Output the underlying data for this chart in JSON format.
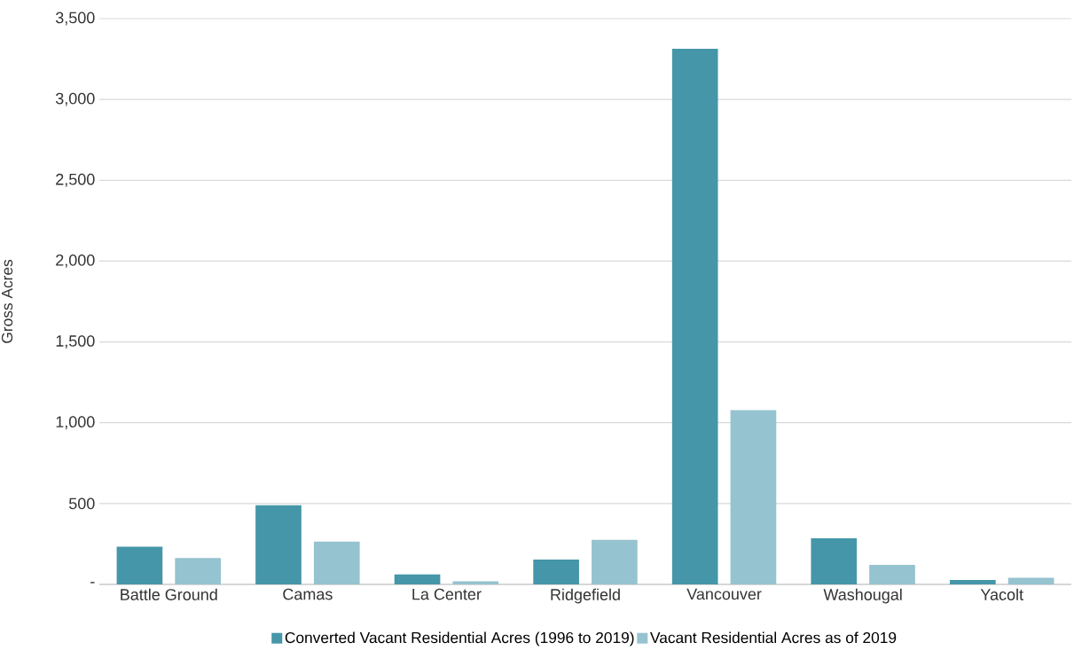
{
  "chart_data": {
    "type": "bar",
    "ylabel": "Gross Acres",
    "categories": [
      "Battle Ground",
      "Camas",
      "La Center",
      "Ridgefield",
      "Vancouver",
      "Washougal",
      "Yacolt"
    ],
    "series": [
      {
        "name": "Converted Vacant Residential Acres (1996 to 2019)",
        "color": "#4596a8",
        "values": [
          233,
          489,
          61,
          153,
          3313,
          285,
          28
        ]
      },
      {
        "name": "Vacant Residential Acres as of 2019",
        "color": "#95c3cf",
        "values": [
          163,
          265,
          19,
          275,
          1078,
          120,
          41
        ]
      }
    ],
    "ylim": [
      0,
      3500
    ],
    "yticks": [
      {
        "value": 0,
        "label": "-"
      },
      500,
      {
        "value": 1000,
        "label": "1,000"
      },
      {
        "value": 1500,
        "label": "1,500"
      },
      {
        "value": 2000,
        "label": "2,000"
      },
      {
        "value": 2500,
        "label": "2,500"
      },
      {
        "value": 3000,
        "label": "3,000"
      },
      {
        "value": 3500,
        "label": "3,500"
      }
    ],
    "grid": "y",
    "legend": "bottom"
  }
}
